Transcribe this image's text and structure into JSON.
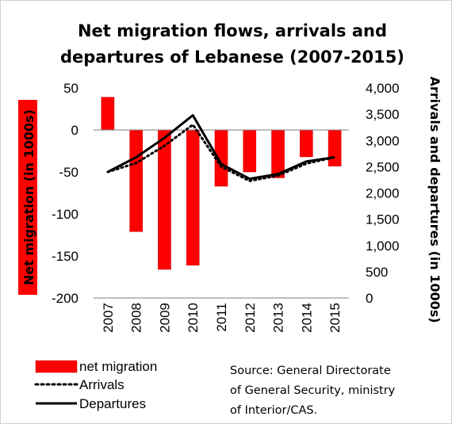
{
  "chart_data": {
    "type": "bar",
    "title_lines": [
      "Net migration flows, arrivals and",
      "departures of Lebanese (2007-2015)"
    ],
    "categories": [
      "2007",
      "2008",
      "2009",
      "2010",
      "2011",
      "2012",
      "2013",
      "2014",
      "2015"
    ],
    "series": [
      {
        "name": "net migration",
        "type": "bar",
        "axis": "left",
        "values": [
          39,
          -121,
          -166,
          -161,
          -67,
          -50,
          -57,
          -32,
          -43
        ],
        "color": "#ff0000"
      },
      {
        "name": "Arrivals",
        "type": "line",
        "axis": "right",
        "style": "dotted",
        "values": [
          2400,
          2570,
          2900,
          3300,
          2500,
          2230,
          2330,
          2560,
          2680
        ],
        "color": "#000000"
      },
      {
        "name": "Departures",
        "type": "line",
        "axis": "right",
        "style": "solid",
        "values": [
          2400,
          2680,
          3050,
          3480,
          2550,
          2270,
          2360,
          2600,
          2680
        ],
        "color": "#000000"
      }
    ],
    "y_left": {
      "label": "Net migration (in 1000s)",
      "min": -200,
      "max": 50,
      "ticks": [
        "50",
        "0",
        "-50",
        "-100",
        "-150",
        "-200"
      ],
      "label_background": "#ff0000"
    },
    "y_right": {
      "label": "Arrivals and departures (in 1000s)",
      "min": 0,
      "max": 4000,
      "ticks": [
        "4,000",
        "3,500",
        "3,000",
        "2,500",
        "2,000",
        "1,500",
        "1,000",
        "500",
        "0"
      ]
    },
    "grid": false,
    "legend_position": "bottom-left"
  },
  "source_lines": [
    "Source: General Directorate",
    "of General Security, ministry",
    "of Interior/CAS."
  ]
}
